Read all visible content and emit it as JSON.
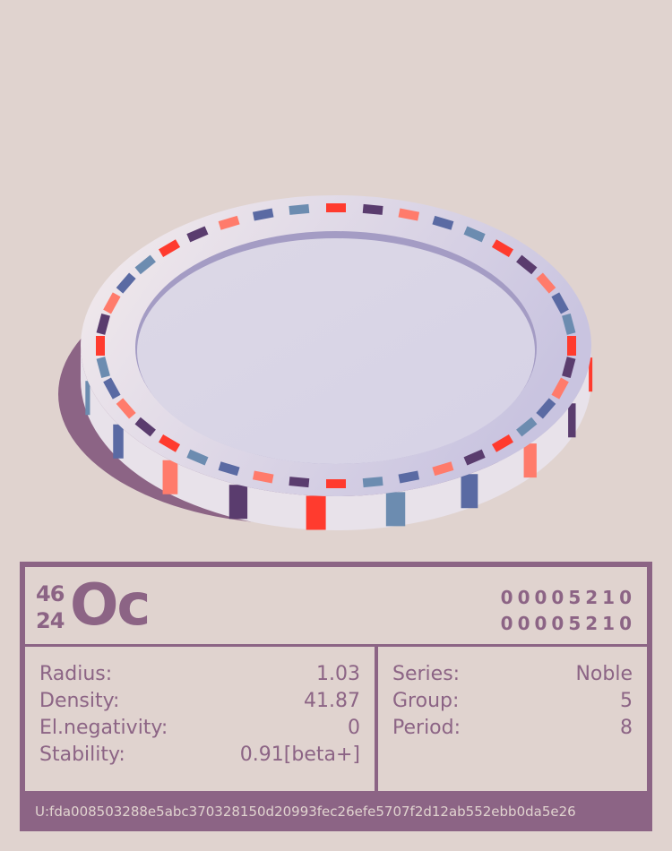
{
  "element": {
    "mass_number": "46",
    "atomic_number": "24",
    "symbol": "Oc",
    "code_line_1": "00005210",
    "code_line_2": "00005210"
  },
  "properties_left": [
    {
      "label": "Radius:",
      "value": "1.03"
    },
    {
      "label": "Density:",
      "value": "41.87"
    },
    {
      "label": "El.negativity:",
      "value": "0"
    },
    {
      "label": "Stability:",
      "value": "0.91[beta+]"
    }
  ],
  "properties_right": [
    {
      "label": "Series:",
      "value": "Noble"
    },
    {
      "label": "Group:",
      "value": "5"
    },
    {
      "label": "Period:",
      "value": "8"
    }
  ],
  "footer": {
    "uid": "U:fda008503288e5abc370328150d20993fec26efe5707f2d12ab552ebb0da5e26"
  },
  "colors": {
    "accent": "#8c6485",
    "background": "#e0d3cf",
    "stripe_colors": [
      "#ff3b2e",
      "#5a3c6e",
      "#ff7b6b",
      "#5a6aa3",
      "#6c8cb0"
    ]
  }
}
